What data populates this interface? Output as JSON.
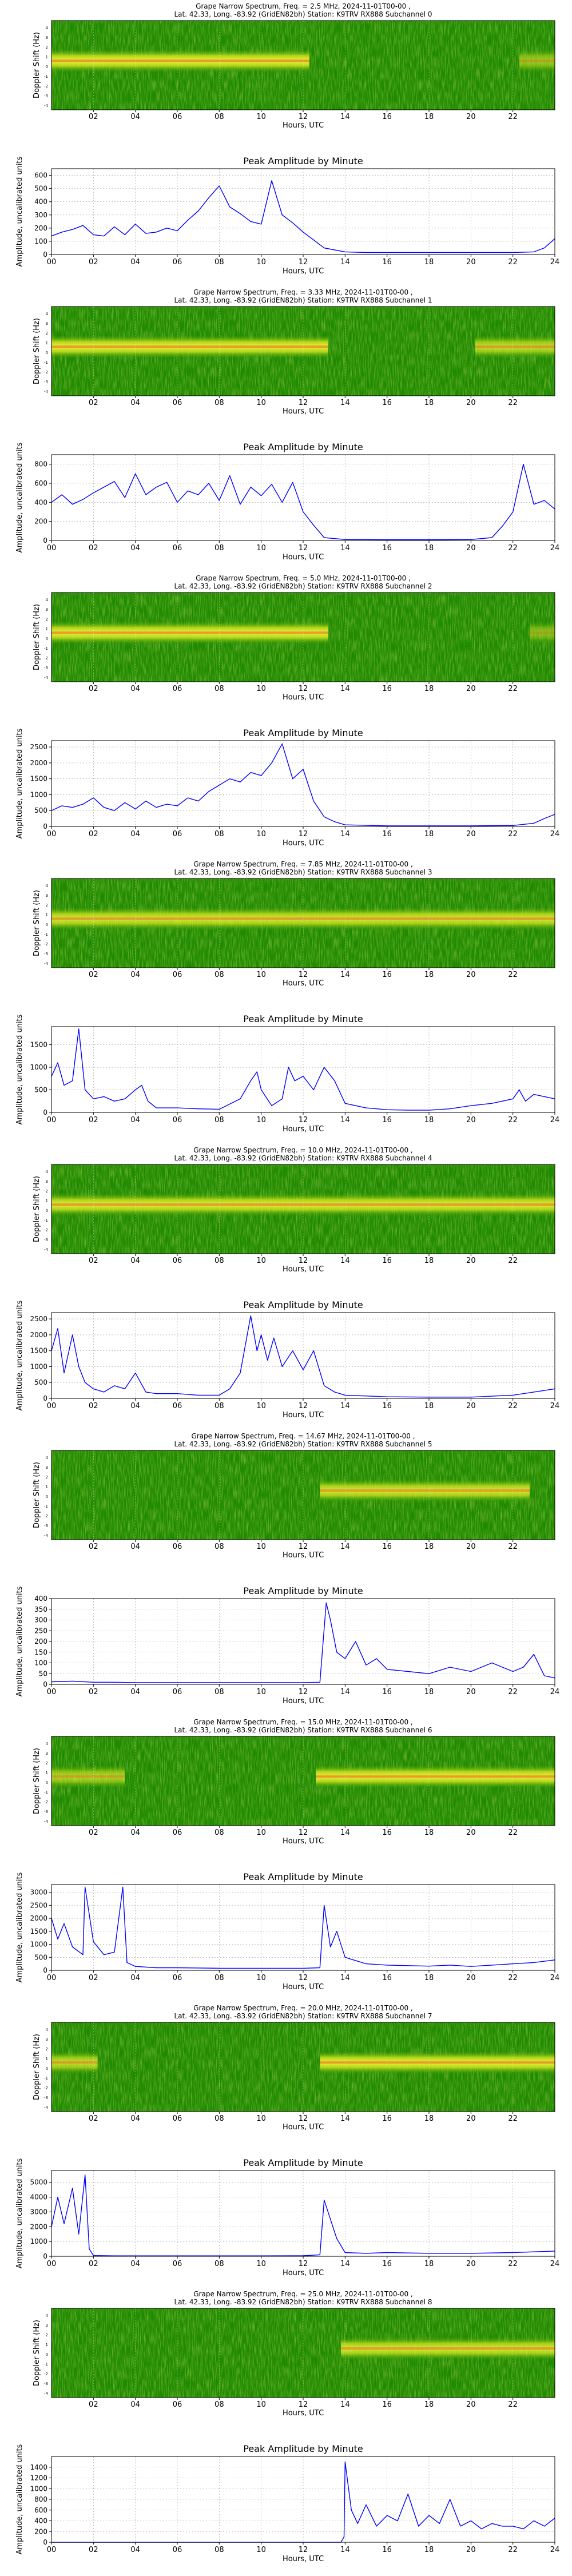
{
  "shared": {
    "subtitle": "Lat.  42.33, Long. -83.92 (GridEN82bh) Station: K9TRV RX888 Subchannel",
    "spec_xlabel": "Hours, UTC",
    "spec_ylabel": "Doppler Shift (Hz)",
    "spec_xticks": [
      "02",
      "04",
      "06",
      "08",
      "10",
      "12",
      "14",
      "16",
      "18",
      "20",
      "22"
    ],
    "spec_yticks": [
      "4",
      "3",
      "2",
      "1",
      "0",
      "-1",
      "-2",
      "-3",
      "-4"
    ],
    "amp_title": "Peak Amplitude by Minute",
    "amp_xlabel": "Hours, UTC",
    "amp_ylabel": "Amplitude, uncalibrated units",
    "amp_xticks": [
      "00",
      "02",
      "04",
      "06",
      "08",
      "10",
      "12",
      "14",
      "16",
      "18",
      "20",
      "22",
      "24"
    ],
    "colors": {
      "spec_bg": "#1f8a00",
      "spec_band": "#e8ee2a",
      "spec_core": "#e33b1a",
      "line": "#0000ff",
      "grid": "#9a9a9a"
    }
  },
  "chart_data": [
    {
      "type": "heatmap",
      "title": "Grape Narrow Spectrum, Freq. = 2.5 MHz, 2024-11-01T00-00 ,",
      "subchannel": "0",
      "amplitude": {
        "type": "line",
        "ylim": [
          0,
          650
        ],
        "yticks": [
          0,
          100,
          200,
          300,
          400,
          500,
          600
        ],
        "x": [
          0,
          0.5,
          1,
          1.5,
          2,
          2.5,
          3,
          3.5,
          4,
          4.5,
          5,
          5.5,
          6,
          6.5,
          7,
          7.5,
          8,
          8.5,
          9,
          9.5,
          10,
          10.5,
          11,
          11.5,
          12,
          12.5,
          13,
          14,
          15,
          16,
          17,
          18,
          19,
          20,
          21,
          22,
          23,
          23.5,
          24
        ],
        "y": [
          140,
          170,
          190,
          220,
          150,
          140,
          210,
          150,
          230,
          160,
          170,
          200,
          180,
          260,
          330,
          430,
          520,
          360,
          310,
          250,
          230,
          560,
          300,
          240,
          170,
          110,
          50,
          20,
          15,
          15,
          15,
          15,
          15,
          15,
          15,
          15,
          20,
          50,
          120
        ]
      }
    },
    {
      "type": "heatmap",
      "title": "Grape Narrow Spectrum, Freq. = 3.33 MHz, 2024-11-01T00-00 ,",
      "subchannel": "1",
      "amplitude": {
        "type": "line",
        "ylim": [
          0,
          900
        ],
        "yticks": [
          0,
          200,
          400,
          600,
          800
        ],
        "x": [
          0,
          0.5,
          1,
          1.5,
          2,
          2.5,
          3,
          3.5,
          4,
          4.5,
          5,
          5.5,
          6,
          6.5,
          7,
          7.5,
          8,
          8.5,
          9,
          9.5,
          10,
          10.5,
          11,
          11.5,
          12,
          12.5,
          13,
          14,
          16,
          18,
          20,
          21,
          21.5,
          22,
          22.5,
          23,
          23.5,
          24
        ],
        "y": [
          400,
          480,
          380,
          430,
          500,
          560,
          620,
          450,
          700,
          480,
          560,
          610,
          400,
          520,
          480,
          600,
          420,
          680,
          380,
          560,
          470,
          590,
          400,
          610,
          300,
          160,
          30,
          10,
          8,
          8,
          10,
          30,
          150,
          300,
          800,
          380,
          420,
          330
        ]
      }
    },
    {
      "type": "heatmap",
      "title": "Grape Narrow Spectrum, Freq. = 5.0 MHz, 2024-11-01T00-00 ,",
      "subchannel": "2",
      "amplitude": {
        "type": "line",
        "ylim": [
          0,
          2700
        ],
        "yticks": [
          0,
          500,
          1000,
          1500,
          2000,
          2500
        ],
        "x": [
          0,
          0.5,
          1,
          1.5,
          2,
          2.5,
          3,
          3.5,
          4,
          4.5,
          5,
          5.5,
          6,
          6.5,
          7,
          7.5,
          8,
          8.5,
          9,
          9.5,
          10,
          10.5,
          11,
          11.5,
          12,
          12.5,
          13,
          13.5,
          14,
          16,
          18,
          20,
          22,
          23,
          23.5,
          24
        ],
        "y": [
          500,
          650,
          600,
          700,
          900,
          600,
          500,
          750,
          550,
          800,
          600,
          700,
          650,
          900,
          800,
          1100,
          1300,
          1500,
          1400,
          1700,
          1600,
          2000,
          2600,
          1500,
          1800,
          800,
          300,
          150,
          50,
          20,
          20,
          20,
          30,
          100,
          250,
          380
        ]
      }
    },
    {
      "type": "heatmap",
      "title": "Grape Narrow Spectrum, Freq. = 7.85 MHz, 2024-11-01T00-00 ,",
      "subchannel": "3",
      "amplitude": {
        "type": "line",
        "ylim": [
          0,
          1900
        ],
        "yticks": [
          0,
          500,
          1000,
          1500
        ],
        "x": [
          0,
          0.3,
          0.6,
          1,
          1.3,
          1.6,
          2,
          2.5,
          3,
          3.5,
          4,
          4.3,
          4.6,
          5,
          6,
          7,
          8,
          9,
          9.5,
          9.8,
          10,
          10.5,
          11,
          11.3,
          11.6,
          12,
          12.5,
          13,
          13.5,
          14,
          15,
          16,
          17,
          18,
          19,
          20,
          21,
          22,
          22.3,
          22.6,
          23,
          24
        ],
        "y": [
          800,
          1100,
          600,
          700,
          1850,
          500,
          300,
          350,
          250,
          300,
          500,
          600,
          250,
          100,
          100,
          80,
          70,
          300,
          700,
          900,
          500,
          150,
          300,
          1000,
          700,
          800,
          500,
          1000,
          700,
          200,
          100,
          60,
          50,
          50,
          80,
          150,
          200,
          300,
          500,
          250,
          400,
          300
        ]
      }
    },
    {
      "type": "heatmap",
      "title": "Grape Narrow Spectrum, Freq. = 10.0 MHz, 2024-11-01T00-00 ,",
      "subchannel": "4",
      "amplitude": {
        "type": "line",
        "ylim": [
          0,
          2700
        ],
        "yticks": [
          0,
          500,
          1000,
          1500,
          2000,
          2500
        ],
        "x": [
          0,
          0.3,
          0.6,
          1,
          1.3,
          1.6,
          2,
          2.5,
          3,
          3.5,
          4,
          4.5,
          5,
          6,
          7,
          8,
          8.5,
          9,
          9.5,
          9.8,
          10,
          10.3,
          10.6,
          11,
          11.5,
          12,
          12.5,
          13,
          13.5,
          14,
          16,
          18,
          20,
          22,
          23,
          24
        ],
        "y": [
          1500,
          2200,
          800,
          2000,
          1000,
          500,
          300,
          200,
          400,
          300,
          800,
          200,
          150,
          150,
          100,
          100,
          300,
          800,
          2600,
          1500,
          2000,
          1200,
          1900,
          1000,
          1500,
          900,
          1500,
          400,
          200,
          100,
          50,
          40,
          40,
          100,
          200,
          300
        ]
      }
    },
    {
      "type": "heatmap",
      "title": "Grape Narrow Spectrum, Freq. = 14.67 MHz, 2024-11-01T00-00 ,",
      "subchannel": "5",
      "amplitude": {
        "type": "line",
        "ylim": [
          0,
          400
        ],
        "yticks": [
          0,
          50,
          100,
          150,
          200,
          250,
          300,
          350,
          400
        ],
        "x": [
          0,
          1,
          2,
          3,
          4,
          5,
          6,
          7,
          8,
          9,
          10,
          11,
          12,
          12.8,
          13.1,
          13.3,
          13.6,
          14,
          14.5,
          15,
          15.5,
          16,
          17,
          18,
          19,
          20,
          21,
          22,
          22.5,
          23,
          23.5,
          24
        ],
        "y": [
          12,
          15,
          10,
          10,
          8,
          8,
          8,
          8,
          8,
          8,
          8,
          8,
          8,
          10,
          380,
          300,
          150,
          120,
          200,
          90,
          120,
          70,
          60,
          50,
          80,
          60,
          100,
          60,
          80,
          140,
          40,
          30
        ]
      }
    },
    {
      "type": "heatmap",
      "title": "Grape Narrow Spectrum, Freq. = 15.0 MHz, 2024-11-01T00-00 ,",
      "subchannel": "6",
      "amplitude": {
        "type": "line",
        "ylim": [
          0,
          3300
        ],
        "yticks": [
          0,
          500,
          1000,
          1500,
          2000,
          2500,
          3000
        ],
        "x": [
          0,
          0.3,
          0.6,
          1,
          1.5,
          1.6,
          2,
          2.5,
          3,
          3.4,
          3.6,
          4,
          5,
          6,
          7,
          8,
          9,
          10,
          11,
          12,
          12.8,
          13,
          13.3,
          13.6,
          14,
          15,
          16,
          17,
          18,
          19,
          20,
          21,
          22,
          23,
          24
        ],
        "y": [
          2000,
          1200,
          1800,
          900,
          600,
          3200,
          1100,
          600,
          700,
          3200,
          300,
          150,
          100,
          100,
          90,
          80,
          80,
          80,
          80,
          80,
          100,
          2500,
          900,
          1500,
          500,
          250,
          200,
          180,
          160,
          200,
          150,
          200,
          250,
          300,
          400
        ]
      }
    },
    {
      "type": "heatmap",
      "title": "Grape Narrow Spectrum, Freq. = 20.0 MHz, 2024-11-01T00-00 ,",
      "subchannel": "7",
      "amplitude": {
        "type": "line",
        "ylim": [
          0,
          5800
        ],
        "yticks": [
          0,
          1000,
          2000,
          3000,
          4000,
          5000
        ],
        "x": [
          0,
          0.3,
          0.6,
          1,
          1.3,
          1.6,
          1.8,
          2,
          3,
          4,
          6,
          8,
          10,
          12,
          12.8,
          13,
          13.3,
          13.6,
          14,
          15,
          16,
          18,
          20,
          22,
          24
        ],
        "y": [
          2000,
          4000,
          2200,
          4600,
          1500,
          5500,
          500,
          50,
          30,
          30,
          30,
          30,
          30,
          40,
          100,
          3800,
          2500,
          1200,
          250,
          200,
          250,
          200,
          200,
          250,
          350
        ]
      }
    },
    {
      "type": "heatmap",
      "title": "Grape Narrow Spectrum, Freq. = 25.0 MHz, 2024-11-01T00-00 ,",
      "subchannel": "8",
      "amplitude": {
        "type": "line",
        "ylim": [
          0,
          1600
        ],
        "yticks": [
          0,
          200,
          400,
          600,
          800,
          1000,
          1200,
          1400
        ],
        "x": [
          0,
          2,
          4,
          6,
          8,
          10,
          12,
          13,
          13.8,
          13.95,
          14,
          14.3,
          14.6,
          15,
          15.5,
          16,
          16.5,
          17,
          17.5,
          18,
          18.5,
          19,
          19.5,
          20,
          20.5,
          21,
          21.5,
          22,
          22.5,
          23,
          23.5,
          24
        ],
        "y": [
          0,
          0,
          0,
          0,
          0,
          0,
          0,
          0,
          0,
          100,
          1500,
          600,
          350,
          700,
          300,
          500,
          400,
          900,
          300,
          500,
          350,
          800,
          300,
          400,
          250,
          350,
          300,
          300,
          250,
          400,
          300,
          450
        ]
      }
    }
  ]
}
